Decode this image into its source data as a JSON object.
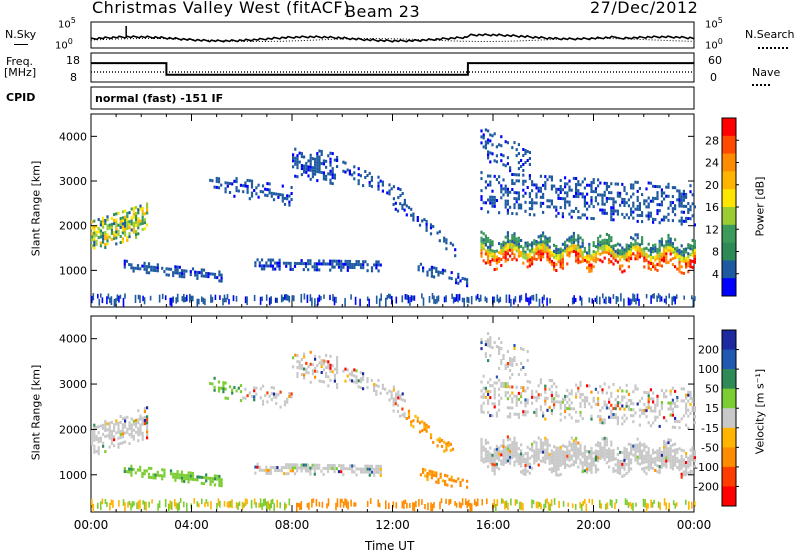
{
  "header": {
    "title": "Christmas Valley West (fitACF)",
    "beam": "Beam 23",
    "date": "27/Dec/2012"
  },
  "strip": {
    "nsky_label": "N.Sky",
    "nsky_tick_top": "10^5",
    "nsky_tick_bottom": "10^0",
    "nsearch_label": "N.Search",
    "nsearch_tick_top": "10^5",
    "nsearch_tick_bottom": "10^0",
    "freq_label_1": "Freq.",
    "freq_label_2": "[MHz]",
    "freq_tick_top": "18",
    "freq_tick_bottom": "8",
    "nave_label": "Nave",
    "nave_tick_top": "60",
    "nave_tick_bottom": "0",
    "cpid_label": "CPID",
    "cpid_text": "normal (fast) -151 IF"
  },
  "panels": {
    "power_ylabel": "Slant Range [km]",
    "velocity_ylabel": "Slant Range [km]",
    "x_title": "Time UT"
  },
  "power_colorbar": {
    "label": "Power [dB]",
    "ticks": [
      "28",
      "24",
      "20",
      "16",
      "12",
      "8",
      "4"
    ],
    "colors": [
      "#ff0000",
      "#ff4a00",
      "#ff8c00",
      "#ffb400",
      "#ffe600",
      "#9acd32",
      "#3c9a5a",
      "#2e8b57",
      "#1e5aa0",
      "#0000ff"
    ]
  },
  "velocity_colorbar": {
    "label": "Velocity [m s⁻¹]",
    "ticks": [
      "200",
      "100",
      "50",
      "15",
      "-15",
      "-50",
      "-100",
      "-200"
    ],
    "colors": [
      "#1e2aa0",
      "#1f5ab0",
      "#2e8b57",
      "#7ccd32",
      "#c8c8c8",
      "#ffb400",
      "#ff8c00",
      "#ff3c00",
      "#ff0000"
    ]
  },
  "chart_data": [
    {
      "type": "line",
      "title": "Christmas Valley West (fitACF)",
      "series": [
        {
          "name": "N.Sky"
        },
        {
          "name": "N.Search"
        }
      ],
      "ylim": [
        1,
        100000
      ],
      "x": [
        0,
        2,
        4,
        6,
        8,
        10,
        12,
        14,
        16,
        18,
        20,
        22,
        24
      ]
    },
    {
      "type": "line",
      "series": [
        {
          "name": "Freq.",
          "x": [
            0,
            3,
            3,
            15,
            15,
            24
          ],
          "values": [
            14.5,
            14.5,
            10.5,
            10.5,
            14.5,
            14.5
          ]
        },
        {
          "name": "Nave",
          "x": [
            0,
            24
          ],
          "values": [
            16,
            16
          ]
        }
      ],
      "ylabel": "Freq. [MHz]",
      "ylim": [
        8,
        18
      ]
    },
    {
      "type": "heatmap",
      "title": "Power [dB]",
      "xlabel": "Time UT",
      "ylabel": "Slant Range [km]",
      "x_ticks": [
        "00:00",
        "04:00",
        "08:00",
        "12:00",
        "16:00",
        "20:00",
        "00:00"
      ],
      "y_ticks": [
        1000,
        2000,
        3000,
        4000
      ],
      "ylim": [
        180,
        4500
      ],
      "colorbar_ticks": [
        28,
        24,
        20,
        16,
        12,
        8,
        4
      ]
    },
    {
      "type": "heatmap",
      "title": "Velocity [m s-1]",
      "xlabel": "Time UT",
      "ylabel": "Slant Range [km]",
      "x_ticks": [
        "00:00",
        "04:00",
        "08:00",
        "12:00",
        "16:00",
        "20:00",
        "00:00"
      ],
      "y_ticks": [
        1000,
        2000,
        3000,
        4000
      ],
      "ylim": [
        180,
        4500
      ],
      "colorbar_ticks": [
        200,
        100,
        50,
        15,
        -15,
        -50,
        -100,
        -200
      ]
    }
  ]
}
